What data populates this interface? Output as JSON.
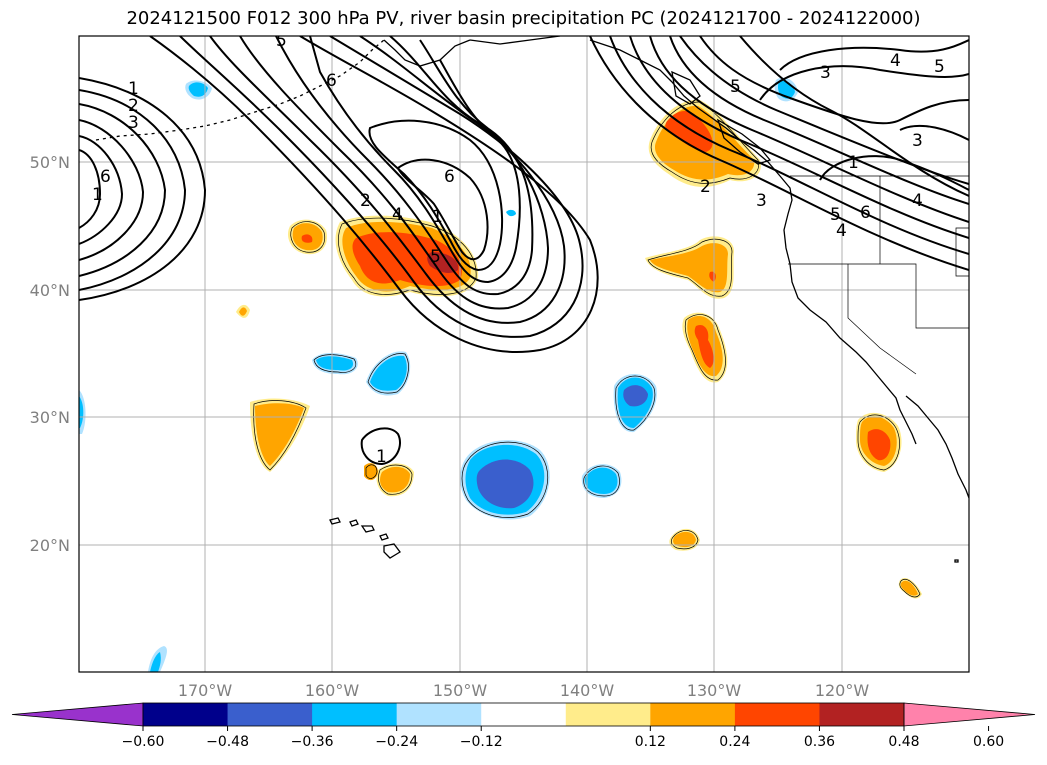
{
  "title": "2024121500 F012 300 hPa PV, river basin precipitation PC (2024121700 - 2024122000)",
  "map": {
    "lat_labels": [
      "50°N",
      "40°N",
      "30°N",
      "20°N"
    ],
    "lon_labels": [
      "170°W",
      "160°W",
      "150°W",
      "140°W",
      "130°W",
      "120°W"
    ],
    "gridlines": true
  },
  "pv_contour_labels": [
    "1",
    "2",
    "3",
    "6",
    "1",
    "2",
    "4",
    "6",
    "5",
    "1",
    "2",
    "3",
    "4",
    "5",
    "6",
    "1",
    "3",
    "4",
    "5",
    "3",
    "4",
    "5",
    "6",
    "1",
    "5"
  ],
  "colorbar": {
    "ticks": [
      "−0.60",
      "−0.48",
      "−0.36",
      "−0.24",
      "−0.12",
      "0.12",
      "0.24",
      "0.36",
      "0.48",
      "0.60"
    ],
    "colors": [
      "#9932cc",
      "#00008b",
      "#3a5fcd",
      "#00bfff",
      "#b0e2ff",
      "#ffffff",
      "#ffec8b",
      "#ffa500",
      "#ff4500",
      "#b22222",
      "#ff82ab"
    ],
    "extend": "both"
  }
}
